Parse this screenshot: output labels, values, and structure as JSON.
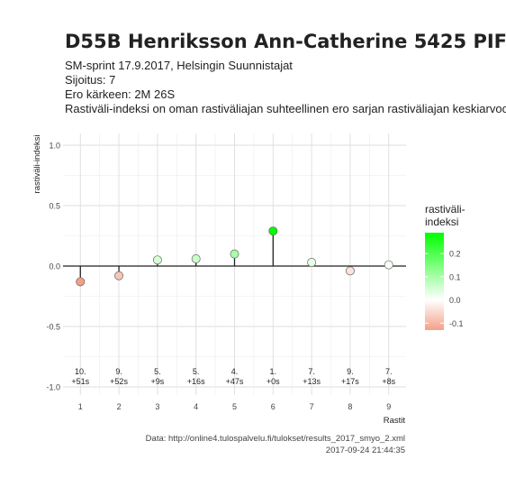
{
  "header": {
    "title": "D55B Henriksson Ann-Catherine 5425 PIF",
    "line1": "SM-sprint 17.9.2017, Helsingin Suunnistajat",
    "line2": "Sijoitus: 7",
    "line3": "Ero kärkeen: 2M 26S",
    "line4": "Rastiväli-indeksi on oman rastiväliajan suhteellinen ero sarjan rastiväliajan keskiarvoon"
  },
  "footer": {
    "source": "Data: http://online4.tulospalvelu.fi/tulokset/results_2017_smyo_2.xml",
    "timestamp": "2017-09-24 21:44:35"
  },
  "chart_data": {
    "type": "scatter",
    "style": "lollipop",
    "xlabel": "Rastit",
    "ylabel": "rastiväli-indeksi",
    "x": [
      1,
      2,
      3,
      4,
      5,
      6,
      7,
      8,
      9
    ],
    "values": [
      -0.13,
      -0.08,
      0.05,
      0.06,
      0.1,
      0.29,
      0.03,
      -0.04,
      0.01
    ],
    "labels_rank": [
      "10.",
      "9.",
      "5.",
      "5.",
      "4.",
      "1.",
      "7.",
      "9.",
      "7."
    ],
    "labels_diff": [
      "+51s",
      "+52s",
      "+9s",
      "+16s",
      "+47s",
      "+0s",
      "+13s",
      "+17s",
      "+8s"
    ],
    "yticks": [
      1.0,
      0.5,
      0.0,
      -0.5,
      -1.0
    ],
    "ytick_labels": [
      "1.0",
      "0.5",
      "0.0",
      "-0.5",
      "-1.0"
    ],
    "ylim": [
      -1.0,
      1.0
    ],
    "xlim": [
      0.55,
      9.45
    ],
    "grid": true,
    "legend": {
      "title_line1": "rastiväli-",
      "title_line2": "indeksi",
      "ticks": [
        0.2,
        0.1,
        0.0,
        -0.1
      ],
      "tick_labels": [
        "0.2",
        "0.1",
        "0.0",
        "-0.1"
      ],
      "range": [
        -0.13,
        0.29
      ],
      "placement": "right",
      "colors": {
        "high": "#00ff00",
        "mid": "#ffffff",
        "low": "#f4a088"
      }
    }
  }
}
